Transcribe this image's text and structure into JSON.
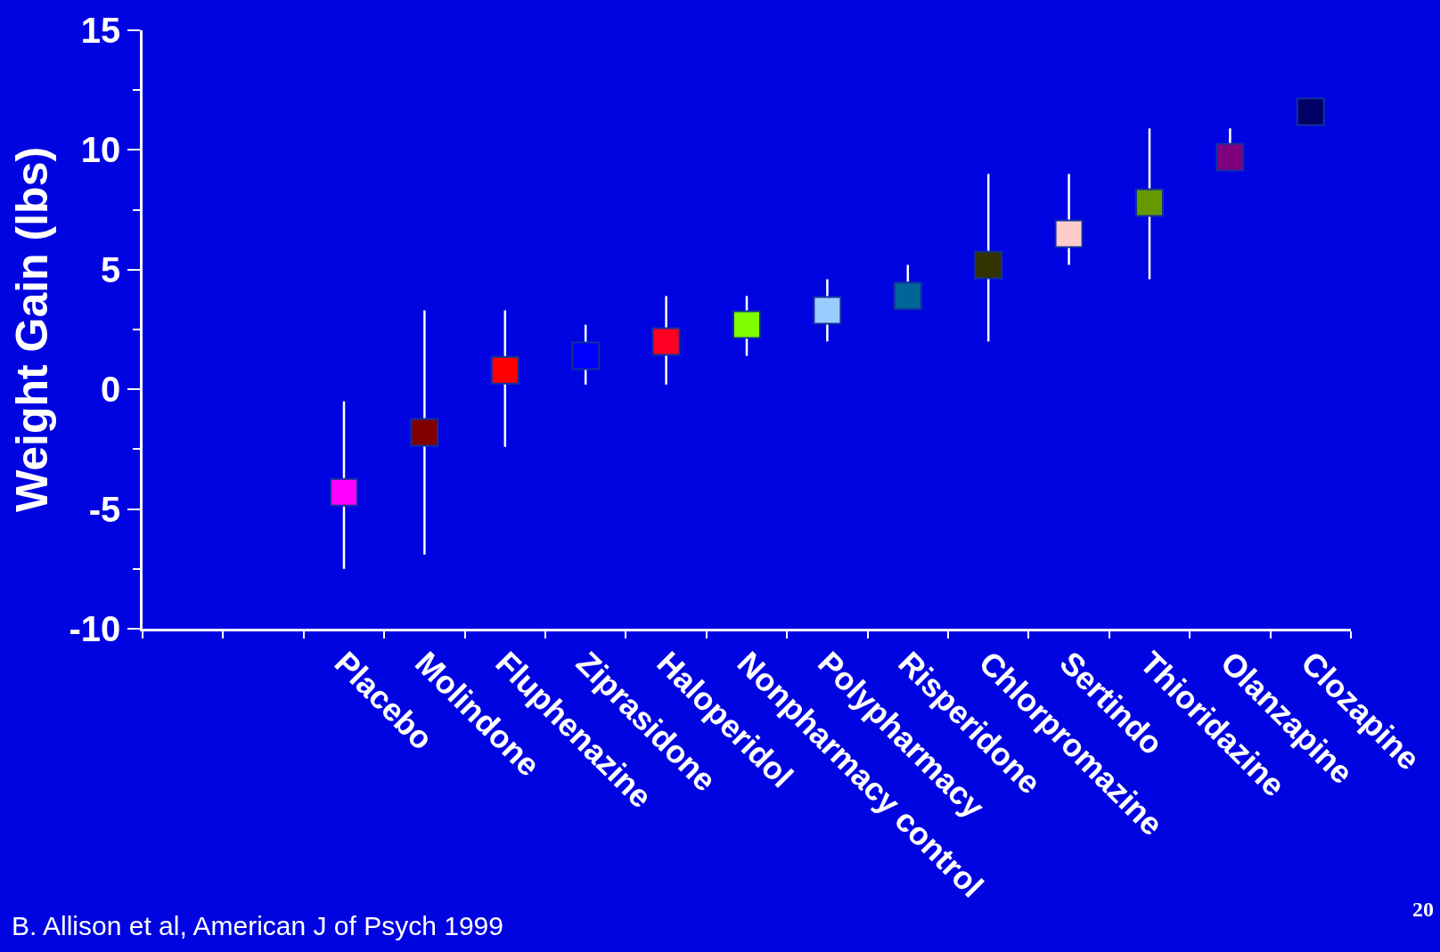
{
  "chart_data": {
    "type": "scatter",
    "ylabel": "Weight Gain (lbs)",
    "marker": "square",
    "grid": false,
    "categories": [
      null,
      null,
      "Placebo",
      "Molindone",
      "Fluphenazine",
      "Ziprasidone",
      "Haloperidol",
      "Nonpharmacy control",
      "Polypharmacy",
      "Risperidone",
      "Chlorpromazine",
      "Sertindo",
      "Thioridazine",
      "Olanzapine",
      "Clozapine"
    ],
    "values": [
      null,
      null,
      -4.3,
      -1.8,
      0.8,
      1.4,
      2.0,
      2.7,
      3.3,
      3.9,
      5.2,
      6.5,
      7.8,
      9.7,
      11.6
    ],
    "colors": [
      "#000000",
      "#000000",
      "#ff00ff",
      "#800000",
      "#ff0000",
      "#0000ff",
      "#ff0022",
      "#80ff00",
      "#99ccff",
      "#006699",
      "#333300",
      "#ffcccc",
      "#669900",
      "#800080",
      "#000066"
    ],
    "errors": [
      null,
      null,
      [
        -7.5,
        -0.5
      ],
      [
        -6.9,
        3.3
      ],
      [
        -2.4,
        3.3
      ],
      [
        0.2,
        2.7
      ],
      [
        0.2,
        3.9
      ],
      [
        1.4,
        3.9
      ],
      [
        2.0,
        4.6
      ],
      [
        3.9,
        5.2
      ],
      [
        2.0,
        9.0
      ],
      [
        5.2,
        9.0
      ],
      [
        4.6,
        10.9
      ],
      [
        9.7,
        10.9
      ],
      null
    ],
    "ylim": [
      -10,
      15
    ],
    "yticks": [
      -10,
      {
        "value": -7.5,
        "label": null
      },
      -5,
      {
        "value": -2.5,
        "label": null
      },
      0,
      {
        "value": 2.5,
        "label": null
      },
      5,
      {
        "value": 7.5,
        "label": null
      },
      10,
      {
        "value": 12.5,
        "label": null
      },
      15
    ],
    "annotations": [
      "B. Allison et al, American J of Psych 1999",
      "20"
    ]
  }
}
